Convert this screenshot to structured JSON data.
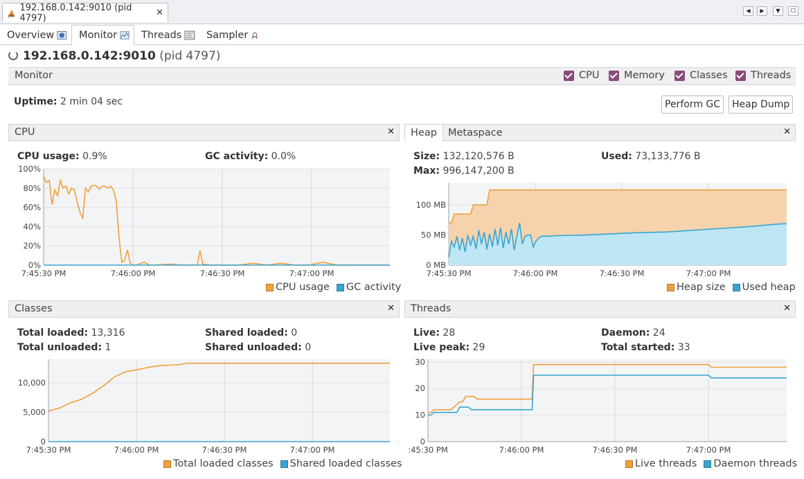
{
  "window_tab": {
    "title": "192.168.0.142:9010 (pid 4797)",
    "close": "✕"
  },
  "nav": {
    "left": "◀",
    "right": "▶",
    "down": "▼",
    "restore": "☐"
  },
  "tabs": [
    {
      "label": "Overview"
    },
    {
      "label": "Monitor"
    },
    {
      "label": "Threads"
    },
    {
      "label": "Sampler"
    }
  ],
  "app": {
    "host": "192.168.0.142:9010",
    "pid": "(pid 4797)"
  },
  "monitor": {
    "label": "Monitor",
    "checkboxes": [
      {
        "label": "CPU"
      },
      {
        "label": "Memory"
      },
      {
        "label": "Classes"
      },
      {
        "label": "Threads"
      }
    ],
    "uptime_label": "Uptime:",
    "uptime_value": "2 min 04 sec",
    "perform_gc": "Perform GC",
    "heap_dump": "Heap Dump"
  },
  "colors": {
    "orange": "#f0a03c",
    "blue": "#36a6d1",
    "heap_fill": "#f6d3ad",
    "used_fill": "#bfe6f5"
  },
  "cpu_panel": {
    "title": "CPU",
    "close": "✕",
    "usage_label": "CPU usage:",
    "usage_value": "0.9%",
    "gc_label": "GC activity:",
    "gc_value": "0.0%",
    "legend": [
      "CPU usage",
      "GC activity"
    ],
    "x_ticks": [
      "7:45:30 PM",
      "7:46:00 PM",
      "7:46:30 PM",
      "7:47:00 PM"
    ],
    "y_ticks": [
      "100%",
      "80%",
      "60%",
      "40%",
      "20%",
      "0%"
    ]
  },
  "heap_panel": {
    "tabs": [
      "Heap",
      "Metaspace"
    ],
    "close": "✕",
    "size_label": "Size:",
    "size_value": "132,120,576 B",
    "max_label": "Max:",
    "max_value": "996,147,200 B",
    "used_label": "Used:",
    "used_value": "73,133,776 B",
    "legend": [
      "Heap size",
      "Used heap"
    ],
    "x_ticks": [
      "7:45:30 PM",
      "7:46:00 PM",
      "7:46:30 PM",
      "7:47:00 PM"
    ],
    "y_ticks": [
      "100 MB",
      "50 MB",
      "0 MB"
    ]
  },
  "classes_panel": {
    "title": "Classes",
    "close": "✕",
    "total_loaded_label": "Total loaded:",
    "total_loaded_value": "13,316",
    "total_unloaded_label": "Total unloaded:",
    "total_unloaded_value": "1",
    "shared_loaded_label": "Shared loaded:",
    "shared_loaded_value": "0",
    "shared_unloaded_label": "Shared unloaded:",
    "shared_unloaded_value": "0",
    "legend": [
      "Total loaded classes",
      "Shared loaded classes"
    ],
    "x_ticks": [
      "7:45:30 PM",
      "7:46:00 PM",
      "7:46:30 PM",
      "7:47:00 PM"
    ],
    "y_ticks": [
      "10,000",
      "5,000",
      "0"
    ]
  },
  "threads_panel": {
    "title": "Threads",
    "close": "✕",
    "live_label": "Live:",
    "live_value": "28",
    "live_peak_label": "Live peak:",
    "live_peak_value": "29",
    "daemon_label": "Daemon:",
    "daemon_value": "24",
    "total_started_label": "Total started:",
    "total_started_value": "33",
    "legend": [
      "Live threads",
      "Daemon threads"
    ],
    "x_ticks": [
      ":45:30 PM",
      "7:46:00 PM",
      "7:46:30 PM",
      "7:47:00 PM"
    ],
    "y_ticks": [
      "30",
      "20",
      "10",
      "0"
    ]
  },
  "chart_data": [
    {
      "type": "line",
      "ylim": [
        0,
        100
      ],
      "series": [
        {
          "name": "CPU usage",
          "x": [
            0,
            1,
            2,
            3,
            4,
            5,
            6,
            7,
            8,
            9,
            10,
            11,
            12,
            13,
            14,
            15,
            16,
            17,
            18,
            19,
            20,
            21,
            22,
            23,
            24,
            25,
            26,
            27,
            28,
            29,
            30,
            31,
            32,
            33,
            34,
            36,
            38,
            40,
            45,
            50,
            55,
            56,
            57,
            60,
            65,
            70,
            75,
            80,
            85,
            90,
            95,
            100,
            105,
            110,
            115,
            120,
            124
          ],
          "values": [
            92,
            86,
            88,
            63,
            78,
            72,
            88,
            80,
            82,
            74,
            80,
            78,
            66,
            55,
            49,
            80,
            76,
            82,
            83,
            82,
            79,
            82,
            82,
            80,
            82,
            78,
            67,
            28,
            3,
            5,
            16,
            2,
            0,
            0,
            1,
            3,
            0,
            0,
            1,
            0,
            0,
            15,
            1,
            0,
            0,
            0,
            2,
            0,
            2,
            0,
            0,
            3,
            0,
            0,
            0,
            0,
            0
          ]
        },
        {
          "name": "GC activity",
          "x": [
            0,
            124
          ],
          "values": [
            0,
            0
          ]
        }
      ]
    },
    {
      "type": "area",
      "ylim": [
        0,
        137
      ],
      "series": [
        {
          "name": "Heap size",
          "x": [
            0,
            1,
            2,
            3,
            4,
            5,
            6,
            7,
            8,
            9,
            10,
            11,
            12,
            13,
            14,
            15,
            16,
            17,
            18,
            19,
            20,
            124
          ],
          "values": [
            70,
            70,
            85,
            85,
            85,
            85,
            85,
            85,
            85,
            100,
            100,
            100,
            100,
            100,
            100,
            125,
            125,
            125,
            125,
            125,
            125,
            125
          ]
        },
        {
          "name": "Used heap",
          "x": [
            0,
            1,
            2,
            3,
            4,
            5,
            6,
            7,
            8,
            9,
            10,
            11,
            12,
            13,
            14,
            15,
            16,
            17,
            18,
            19,
            20,
            21,
            22,
            23,
            24,
            25,
            26,
            27,
            28,
            29,
            30,
            31,
            32,
            33,
            34,
            36,
            40,
            50,
            60,
            70,
            80,
            90,
            100,
            110,
            120,
            124
          ],
          "values": [
            13,
            40,
            30,
            48,
            25,
            45,
            22,
            50,
            33,
            48,
            27,
            58,
            35,
            55,
            26,
            52,
            30,
            60,
            33,
            62,
            28,
            55,
            35,
            60,
            25,
            48,
            70,
            35,
            48,
            50,
            50,
            30,
            40,
            45,
            48,
            48,
            49,
            50,
            52,
            54,
            55,
            58,
            61,
            64,
            68,
            69
          ]
        }
      ]
    },
    {
      "type": "line",
      "ylim": [
        0,
        14000
      ],
      "series": [
        {
          "name": "Total loaded classes",
          "x": [
            0,
            4,
            8,
            12,
            16,
            20,
            24,
            28,
            32,
            34,
            36,
            40,
            44,
            48,
            50,
            52,
            124
          ],
          "values": [
            5200,
            5700,
            6600,
            7200,
            8200,
            9500,
            11000,
            11900,
            12200,
            12400,
            12600,
            12900,
            13000,
            13100,
            13316,
            13316,
            13316
          ]
        },
        {
          "name": "Shared loaded classes",
          "x": [
            0,
            124
          ],
          "values": [
            0,
            0
          ]
        }
      ]
    },
    {
      "type": "line",
      "ylim": [
        0,
        31
      ],
      "series": [
        {
          "name": "Live threads",
          "x": [
            0,
            1,
            2,
            4,
            6,
            8,
            10,
            11,
            12,
            13,
            14,
            15,
            16,
            17,
            18,
            20,
            24,
            30,
            34,
            35,
            36,
            36.5,
            60,
            90,
            97,
            98,
            124
          ],
          "values": [
            11,
            11,
            12,
            12,
            12,
            12,
            14,
            15,
            15,
            17,
            17,
            17,
            17,
            16,
            16,
            16,
            16,
            16,
            16,
            16,
            16,
            29,
            29,
            29,
            29,
            28,
            28
          ]
        },
        {
          "name": "Daemon threads",
          "x": [
            0,
            1,
            2,
            4,
            6,
            8,
            10,
            11,
            12,
            13,
            14,
            15,
            16,
            17,
            18,
            20,
            24,
            30,
            34,
            35,
            36,
            36.5,
            60,
            90,
            97,
            98,
            124
          ],
          "values": [
            10,
            10,
            11,
            11,
            11,
            11,
            11,
            13,
            13,
            13,
            13,
            12,
            12,
            12,
            12,
            12,
            12,
            12,
            12,
            12,
            12,
            25,
            25,
            25,
            25,
            24,
            24
          ]
        }
      ]
    }
  ]
}
